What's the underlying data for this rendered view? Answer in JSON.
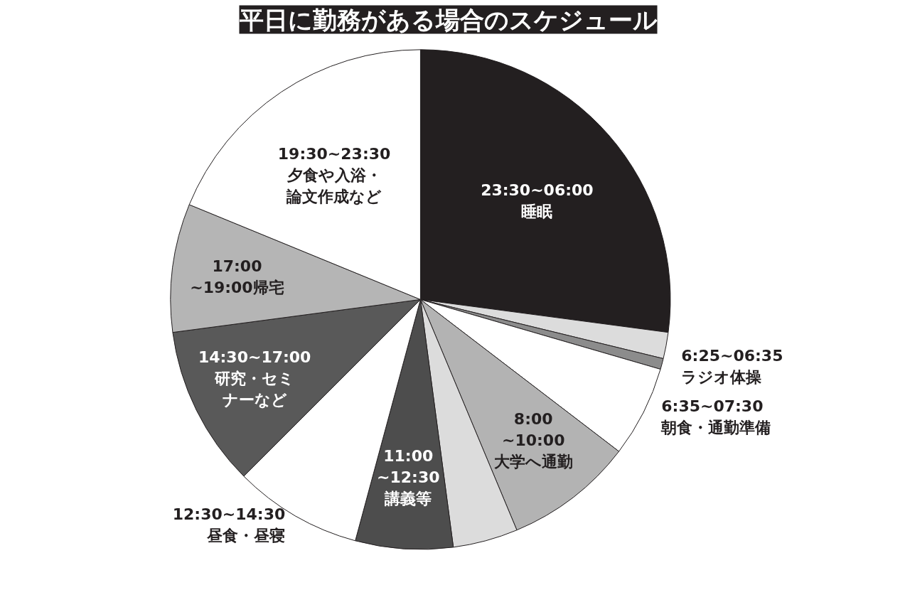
{
  "chart_data": {
    "type": "pie",
    "title": "平日に勤務がある場合のスケジュール",
    "categories": [
      "23:30~06:00\n睡眠",
      null,
      "6:25~06:35\nラジオ体操",
      "6:35~07:30\n朝食・通勤準備",
      "8:00\n~10:00\n大学へ通勤",
      null,
      "11:00\n~12:30\n講義等",
      "12:30~14:30\n昼食・昼寝",
      "14:30~17:00\n研究・セミナーなど",
      "17:00\n~19:00帰宅",
      "19:30~23:30\n夕食や入浴・論文作成など"
    ],
    "values": [
      27.1,
      1.7,
      0.7,
      5.9,
      8.3,
      4.2,
      6.3,
      8.3,
      10.4,
      8.3,
      18.8
    ],
    "colors": [
      "#231f20",
      "#dcdcdc",
      "#8c8c8c",
      "#ffffff",
      "#b3b3b3",
      "#dcdcdc",
      "#4d4d4d",
      "#ffffff",
      "#595959",
      "#b5b5b5",
      "#ffffff"
    ]
  }
}
